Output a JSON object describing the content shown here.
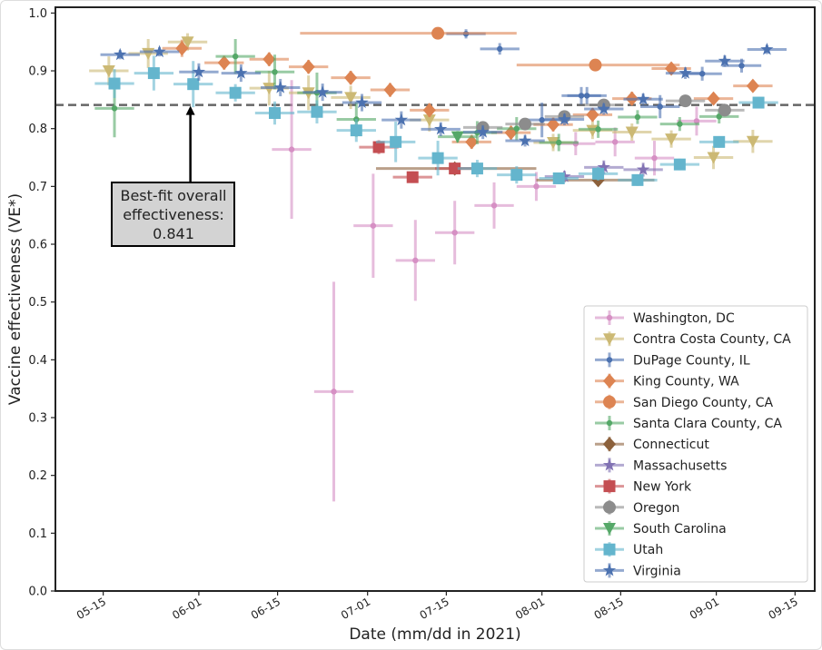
{
  "chart_data": {
    "type": "scatter",
    "title": "",
    "xlabel": "Date (mm/dd in 2021)",
    "ylabel": "Vaccine effectiveness (VE*)",
    "x_units": "day of year 2021",
    "xlim": [
      126.5,
      261.5
    ],
    "ylim": [
      0,
      1.01
    ],
    "xticks": [
      {
        "value": 135,
        "label": "05-15"
      },
      {
        "value": 152,
        "label": "06-01"
      },
      {
        "value": 166,
        "label": "06-15"
      },
      {
        "value": 182,
        "label": "07-01"
      },
      {
        "value": 196,
        "label": "07-15"
      },
      {
        "value": 213,
        "label": "08-01"
      },
      {
        "value": 227,
        "label": "08-15"
      },
      {
        "value": 244,
        "label": "09-01"
      },
      {
        "value": 258,
        "label": "09-15"
      }
    ],
    "yticks": [
      {
        "value": 0.0,
        "label": "0.0"
      },
      {
        "value": 0.1,
        "label": "0.1"
      },
      {
        "value": 0.2,
        "label": "0.2"
      },
      {
        "value": 0.3,
        "label": "0.3"
      },
      {
        "value": 0.4,
        "label": "0.4"
      },
      {
        "value": 0.5,
        "label": "0.5"
      },
      {
        "value": 0.6,
        "label": "0.6"
      },
      {
        "value": 0.7,
        "label": "0.7"
      },
      {
        "value": 0.8,
        "label": "0.8"
      },
      {
        "value": 0.9,
        "label": "0.9"
      },
      {
        "value": 1.0,
        "label": "1.0"
      }
    ],
    "reference_line": {
      "value": 0.841,
      "style": "dashed"
    },
    "annotation": {
      "lines": [
        "Best-fit overall",
        "effectiveness:",
        "0.841"
      ],
      "points_to": [
        150.5,
        0.841
      ]
    },
    "legend_position": "lower-right",
    "default_xerr": 3.5,
    "series": [
      {
        "name": "Washington, DC",
        "color": "#d690c4",
        "marker": "dot",
        "points": [
          [
            168.5,
            0.764,
            0.12
          ],
          [
            176,
            0.345,
            0.19
          ],
          [
            183,
            0.632,
            0.09
          ],
          [
            190.5,
            0.572,
            0.07
          ],
          [
            197.5,
            0.62,
            0.055
          ],
          [
            204.5,
            0.667,
            0.04
          ],
          [
            212,
            0.7,
            0.025
          ],
          [
            219,
            0.774,
            0.02
          ],
          [
            226,
            0.777,
            0.025
          ],
          [
            233,
            0.749,
            0.03
          ],
          [
            240.5,
            0.813,
            0.025
          ]
        ]
      },
      {
        "name": "Contra Costa County, CA",
        "color": "#ccb974",
        "marker": "triangle-down",
        "points": [
          [
            136,
            0.9,
            0.025
          ],
          [
            143,
            0.93,
            0.025
          ],
          [
            150,
            0.95,
            0.015
          ],
          [
            164.5,
            0.87,
            0.03
          ],
          [
            171.5,
            0.862,
            0.03
          ],
          [
            179,
            0.854,
            0.02
          ],
          [
            193,
            0.815,
            0.02
          ],
          [
            215,
            0.776,
            0.015
          ],
          [
            222,
            0.797,
            0.015
          ],
          [
            229,
            0.794,
            0.015
          ],
          [
            236,
            0.782,
            0.015
          ],
          [
            243.5,
            0.75,
            0.02
          ],
          [
            250.5,
            0.778,
            0.02
          ]
        ]
      },
      {
        "name": "DuPage County, IL",
        "color": "#4c72b0",
        "marker": "dot",
        "points": [
          [
            199.5,
            0.964,
            0.008
          ],
          [
            205.5,
            0.938,
            0.01
          ],
          [
            213,
            0.815,
            0.03
          ],
          [
            220,
            0.857,
            0.015
          ],
          [
            221,
            0.857,
            0.015
          ],
          [
            234,
            0.838,
            0.02
          ],
          [
            241.5,
            0.895,
            0.012
          ],
          [
            248.5,
            0.909,
            0.012
          ]
        ]
      },
      {
        "name": "King County, WA",
        "color": "#dd8452",
        "marker": "diamond",
        "points": [
          [
            149,
            0.939,
            0.015
          ],
          [
            156.5,
            0.914,
            0.012
          ],
          [
            164.5,
            0.92,
            0.012
          ],
          [
            171.5,
            0.907,
            0.012
          ],
          [
            179,
            0.888,
            0.012
          ],
          [
            186,
            0.867,
            0.012
          ],
          [
            193,
            0.832,
            0.012
          ],
          [
            200.5,
            0.777,
            0.012
          ],
          [
            207.5,
            0.793,
            0.012
          ],
          [
            215,
            0.807,
            0.012
          ],
          [
            222,
            0.824,
            0.012
          ],
          [
            229,
            0.852,
            0.012
          ],
          [
            236,
            0.904,
            0.01
          ],
          [
            243.5,
            0.852,
            0.01
          ],
          [
            250.5,
            0.874,
            0.01
          ]
        ]
      },
      {
        "name": "San Diego County, CA",
        "color": "#dd8452",
        "marker": "circle",
        "points": [
          [
            194.5,
            0.965,
            0,
            24.5,
            14
          ],
          [
            222.5,
            0.91,
            0,
            14,
            15
          ]
        ]
      },
      {
        "name": "Santa Clara County, CA",
        "color": "#55a868",
        "marker": "dot",
        "points": [
          [
            137,
            0.835,
            0.05
          ],
          [
            158.5,
            0.925,
            0.03
          ],
          [
            165.5,
            0.898,
            0.03
          ],
          [
            173,
            0.862,
            0.035
          ],
          [
            180,
            0.816,
            0.03
          ],
          [
            201.5,
            0.793,
            0.02
          ],
          [
            208.5,
            0.8,
            0.02
          ],
          [
            216,
            0.776,
            0.015
          ],
          [
            223,
            0.799,
            0.015
          ],
          [
            230,
            0.82,
            0.012
          ],
          [
            237.5,
            0.808,
            0.012
          ],
          [
            244.5,
            0.821,
            0.012
          ]
        ]
      },
      {
        "name": "Connecticut",
        "color": "#8c613c",
        "marker": "diamond",
        "points": [
          [
            197.5,
            0.731,
            0,
            14,
            14.5
          ],
          [
            223,
            0.711,
            0,
            11,
            10
          ]
        ]
      },
      {
        "name": "Massachusetts",
        "color": "#8172b3",
        "marker": "star",
        "points": [
          [
            217,
            0.717,
            0.01
          ],
          [
            224,
            0.733,
            0.012
          ],
          [
            231,
            0.729,
            0.012
          ]
        ]
      },
      {
        "name": "New York",
        "color": "#c44e52",
        "marker": "square",
        "points": [
          [
            184,
            0.768,
            0.012
          ],
          [
            190,
            0.716,
            0.01
          ],
          [
            197.5,
            0.731,
            0.01
          ]
        ]
      },
      {
        "name": "Oregon",
        "color": "#8c8c8c",
        "marker": "circle",
        "points": [
          [
            202.5,
            0.802,
            0.01
          ],
          [
            210,
            0.808,
            0.01
          ],
          [
            217,
            0.821,
            0.01
          ],
          [
            224,
            0.841,
            0.01
          ],
          [
            238.5,
            0.848,
            0.01
          ],
          [
            245.5,
            0.832,
            0.01
          ]
        ]
      },
      {
        "name": "South Carolina",
        "color": "#55a868",
        "marker": "triangle-down",
        "points": [
          [
            198,
            0.786,
            0.01
          ]
        ]
      },
      {
        "name": "Utah",
        "color": "#64b5cd",
        "marker": "square",
        "points": [
          [
            137,
            0.878,
            0.025
          ],
          [
            144,
            0.896,
            0.03
          ],
          [
            151,
            0.877,
            0.04
          ],
          [
            158.5,
            0.862,
            0.015
          ],
          [
            165.5,
            0.827,
            0.02
          ],
          [
            173,
            0.829,
            0.02
          ],
          [
            180,
            0.797,
            0.02
          ],
          [
            187,
            0.777,
            0.035
          ],
          [
            194.5,
            0.749,
            0.03
          ],
          [
            201.5,
            0.731,
            0.015
          ],
          [
            208.5,
            0.72,
            0.015
          ],
          [
            216,
            0.714,
            0.01
          ],
          [
            223,
            0.722,
            0.012
          ],
          [
            230,
            0.711,
            0.01
          ],
          [
            237.5,
            0.738,
            0.01
          ],
          [
            244.5,
            0.777,
            0.01
          ],
          [
            251.5,
            0.845,
            0.01
          ]
        ]
      },
      {
        "name": "Virginia",
        "color": "#4c72b0",
        "marker": "star",
        "points": [
          [
            138,
            0.928,
            0.008
          ],
          [
            145,
            0.933,
            0.008
          ],
          [
            152,
            0.898,
            0.015
          ],
          [
            159.5,
            0.896,
            0.015
          ],
          [
            166.5,
            0.871,
            0.015
          ],
          [
            174,
            0.863,
            0.015
          ],
          [
            181,
            0.845,
            0.015
          ],
          [
            188,
            0.815,
            0.015
          ],
          [
            195,
            0.799,
            0.012
          ],
          [
            202.5,
            0.794,
            0.012
          ],
          [
            210,
            0.779,
            0.01
          ],
          [
            217,
            0.816,
            0.01
          ],
          [
            224,
            0.834,
            0.01
          ],
          [
            231,
            0.851,
            0.01
          ],
          [
            238.5,
            0.896,
            0.01
          ],
          [
            245.5,
            0.917,
            0.01
          ],
          [
            253,
            0.937,
            0.008
          ]
        ]
      }
    ]
  }
}
